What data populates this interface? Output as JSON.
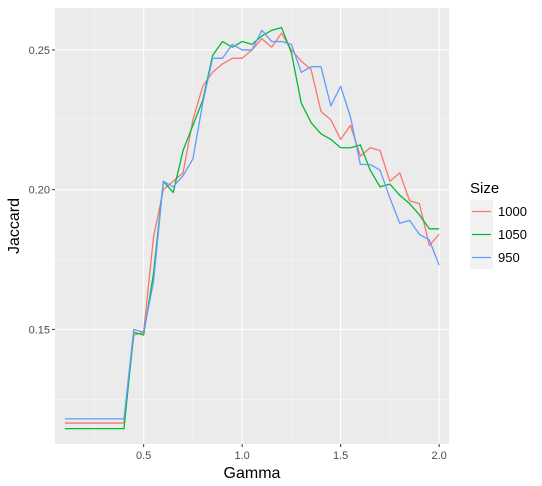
{
  "chart_data": {
    "type": "line",
    "xlabel": "Gamma",
    "ylabel": "Jaccard",
    "xlim": [
      0.05,
      2.05
    ],
    "ylim": [
      0.109,
      0.265
    ],
    "x_ticks": [
      0.5,
      1.0,
      1.5,
      2.0
    ],
    "x_tick_labels": [
      "0.5",
      "1.0",
      "1.5",
      "2.0"
    ],
    "y_ticks": [
      0.15,
      0.2,
      0.25
    ],
    "y_tick_labels": [
      "0.15",
      "0.20",
      "0.25"
    ],
    "grid": true,
    "legend": {
      "title": "Size",
      "position": "right"
    },
    "x": [
      0.1,
      0.15,
      0.2,
      0.25,
      0.3,
      0.35,
      0.4,
      0.45,
      0.5,
      0.55,
      0.6,
      0.65,
      0.7,
      0.75,
      0.8,
      0.85,
      0.9,
      0.95,
      1.0,
      1.05,
      1.1,
      1.15,
      1.2,
      1.25,
      1.3,
      1.35,
      1.4,
      1.45,
      1.5,
      1.55,
      1.6,
      1.65,
      1.7,
      1.75,
      1.8,
      1.85,
      1.9,
      1.95,
      2.0
    ],
    "series": [
      {
        "name": "1000",
        "color": "#F8766D",
        "values": [
          0.1165,
          0.1165,
          0.1165,
          0.1165,
          0.1165,
          0.1165,
          0.1165,
          0.148,
          0.149,
          0.183,
          0.2,
          0.203,
          0.206,
          0.225,
          0.237,
          0.242,
          0.245,
          0.247,
          0.247,
          0.25,
          0.254,
          0.251,
          0.256,
          0.25,
          0.246,
          0.243,
          0.228,
          0.225,
          0.218,
          0.223,
          0.212,
          0.215,
          0.214,
          0.203,
          0.206,
          0.196,
          0.195,
          0.18,
          0.184
        ]
      },
      {
        "name": "1050",
        "color": "#00BA38",
        "values": [
          0.1145,
          0.1145,
          0.1145,
          0.1145,
          0.1145,
          0.1145,
          0.1145,
          0.149,
          0.148,
          0.17,
          0.203,
          0.199,
          0.214,
          0.223,
          0.232,
          0.248,
          0.253,
          0.251,
          0.253,
          0.252,
          0.255,
          0.257,
          0.258,
          0.249,
          0.231,
          0.224,
          0.22,
          0.218,
          0.215,
          0.215,
          0.216,
          0.207,
          0.201,
          0.202,
          0.198,
          0.195,
          0.191,
          0.186,
          0.186
        ]
      },
      {
        "name": "950",
        "color": "#619CFF",
        "values": [
          0.118,
          0.118,
          0.118,
          0.118,
          0.118,
          0.118,
          0.118,
          0.15,
          0.149,
          0.167,
          0.203,
          0.201,
          0.205,
          0.211,
          0.231,
          0.247,
          0.247,
          0.252,
          0.25,
          0.25,
          0.257,
          0.253,
          0.253,
          0.252,
          0.242,
          0.244,
          0.244,
          0.23,
          0.237,
          0.226,
          0.209,
          0.209,
          0.207,
          0.197,
          0.188,
          0.189,
          0.184,
          0.182,
          0.173
        ]
      }
    ]
  }
}
